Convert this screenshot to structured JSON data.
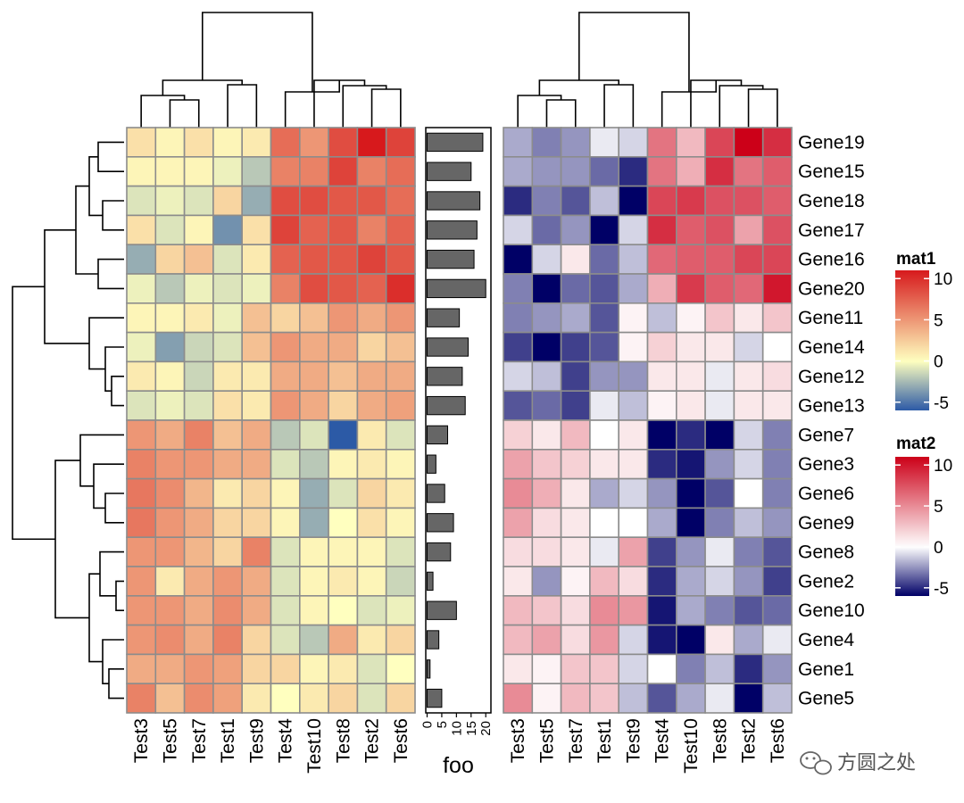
{
  "chart_data": {
    "type": "heatmap",
    "rows": [
      "Gene19",
      "Gene15",
      "Gene18",
      "Gene17",
      "Gene16",
      "Gene20",
      "Gene11",
      "Gene14",
      "Gene12",
      "Gene13",
      "Gene7",
      "Gene3",
      "Gene6",
      "Gene9",
      "Gene8",
      "Gene2",
      "Gene10",
      "Gene4",
      "Gene1",
      "Gene5"
    ],
    "columns": [
      "Test3",
      "Test5",
      "Test7",
      "Test1",
      "Test9",
      "Test4",
      "Test10",
      "Test8",
      "Test2",
      "Test6"
    ],
    "mat1": {
      "name": "mat1",
      "legend_ticks": [
        10,
        5,
        0,
        -5
      ],
      "range": [
        -6,
        11
      ],
      "colors": [
        "#2c5aa6",
        "#ffffbf",
        "#d7191c"
      ],
      "values": [
        [
          1.5,
          0.5,
          1.5,
          0.5,
          1,
          7,
          5,
          8.5,
          11,
          9
        ],
        [
          0.5,
          0.5,
          0.5,
          -0.5,
          -2,
          6,
          6,
          9,
          6,
          7
        ],
        [
          -1,
          -0.5,
          -1,
          2,
          -3,
          8.5,
          8.5,
          8,
          8,
          7
        ],
        [
          1.5,
          -1,
          0.5,
          -4,
          1.5,
          9,
          7.5,
          8,
          6,
          7.5
        ],
        [
          -3,
          2,
          3,
          -1,
          1,
          7.5,
          8,
          8,
          9,
          8
        ],
        [
          -0.5,
          -2,
          -0.5,
          -1,
          -0.5,
          6,
          8.5,
          8,
          7.5,
          10
        ],
        [
          0.5,
          0.5,
          1,
          -0.5,
          3,
          2,
          3,
          5,
          4,
          5
        ],
        [
          -0.5,
          -3.5,
          -1.5,
          -1,
          3,
          5,
          4,
          4,
          2,
          3
        ],
        [
          1,
          0.5,
          -1.5,
          1,
          1,
          4,
          4,
          3,
          4,
          4
        ],
        [
          -1,
          -0.5,
          -1,
          1.5,
          1,
          5,
          4,
          2,
          4,
          4.5
        ],
        [
          5,
          4,
          6,
          3,
          4,
          -2,
          -1,
          -6,
          1,
          -1
        ],
        [
          6,
          5,
          5,
          4,
          4,
          -1,
          -2,
          0.5,
          1,
          0.5
        ],
        [
          6.5,
          5.5,
          3.5,
          1,
          2,
          0.5,
          -3,
          -1,
          2,
          1
        ],
        [
          6.5,
          5,
          4,
          2,
          2,
          0.5,
          -3,
          0,
          1.5,
          0.5
        ],
        [
          5,
          5,
          3.5,
          2,
          6,
          -1,
          0.5,
          0.5,
          0.5,
          -1
        ],
        [
          5,
          1,
          4,
          5,
          4,
          -1,
          0.5,
          1,
          0.5,
          -1.5
        ],
        [
          5,
          5,
          4,
          5.5,
          4,
          -1,
          0.5,
          0,
          -1,
          -0.5
        ],
        [
          5,
          5.5,
          4,
          6,
          2,
          -1,
          -2,
          4,
          1,
          2
        ],
        [
          4,
          4,
          5,
          4.5,
          2,
          2,
          0.5,
          1,
          -1,
          0
        ],
        [
          6,
          3,
          5.5,
          4.5,
          1,
          0,
          1,
          2,
          -1,
          2
        ]
      ]
    },
    "mat2": {
      "name": "mat2",
      "legend_ticks": [
        10,
        5,
        0,
        -5
      ],
      "range": [
        -6,
        11
      ],
      "colors": [
        "#000066",
        "#ffffff",
        "#cc0018"
      ],
      "values": [
        [
          -2,
          -3,
          -2.5,
          -0.5,
          -1,
          6,
          3,
          8,
          11,
          9
        ],
        [
          -2,
          -2.5,
          -2.5,
          -3.5,
          -5,
          6,
          3.5,
          9,
          6,
          7
        ],
        [
          -5,
          -3,
          -4,
          -1.5,
          -6,
          8,
          8.5,
          7.5,
          7.5,
          7
        ],
        [
          -1,
          -3.5,
          -2.5,
          -6,
          -1,
          9,
          7,
          7.5,
          4,
          7.5
        ],
        [
          -6,
          -1,
          1,
          -3.5,
          -1.5,
          6.5,
          7,
          7,
          8,
          8
        ],
        [
          -3,
          -6,
          -3.5,
          -4,
          -2,
          3.5,
          8.5,
          7,
          6.5,
          10
        ],
        [
          -3,
          -2.5,
          -2,
          -4,
          0.5,
          -1.5,
          0.5,
          2.5,
          1,
          2.5
        ],
        [
          -4.5,
          -6.5,
          -4.5,
          -4,
          0.5,
          2,
          1,
          1,
          -1,
          0
        ],
        [
          -1,
          -1.5,
          -4.5,
          -2.5,
          -2.5,
          1,
          1,
          -0.5,
          1,
          1.5
        ],
        [
          -4,
          -3.5,
          -4.5,
          -0.5,
          -1.5,
          0.5,
          1,
          -0.5,
          1,
          1
        ],
        [
          2,
          1,
          3,
          0,
          1,
          -6,
          -5,
          -8,
          -1,
          -3
        ],
        [
          4,
          2.5,
          2,
          1,
          1,
          -5,
          -5.5,
          -2.5,
          -1,
          -3
        ],
        [
          5,
          3.5,
          1,
          -2,
          -1,
          -2.5,
          -6.5,
          -4,
          0,
          -3
        ],
        [
          4,
          1.5,
          1,
          0,
          0,
          -2,
          -6.5,
          -3,
          -1.5,
          -2.5
        ],
        [
          1.5,
          1.5,
          1,
          -0.5,
          4,
          -4.5,
          -2.5,
          -0.5,
          -3,
          -4
        ],
        [
          1,
          -2.5,
          0.5,
          3,
          1.5,
          -5,
          -2,
          -1,
          -2.5,
          -4.5
        ],
        [
          3,
          2.5,
          1.5,
          5,
          4.5,
          -5.5,
          -2,
          -3,
          -4,
          -3.5
        ],
        [
          3,
          4,
          1.5,
          4.5,
          -1,
          -5.5,
          -6.5,
          1,
          -2,
          -0.5
        ],
        [
          1,
          0.5,
          2.5,
          2.5,
          -1,
          0,
          -3,
          -1.5,
          -5,
          -2.5
        ],
        [
          5,
          0.5,
          3,
          2.5,
          -1.5,
          -4,
          -2,
          -0.5,
          -6.5,
          -1.5
        ]
      ]
    },
    "foo": {
      "label": "foo",
      "axis_ticks": [
        0,
        5,
        10,
        15,
        20
      ],
      "range": [
        0,
        21
      ],
      "values": [
        19,
        15,
        18,
        17,
        16,
        20,
        11,
        14,
        12,
        13,
        7,
        3,
        6,
        9,
        8,
        2,
        10,
        4,
        1,
        5
      ]
    }
  },
  "watermark": {
    "text": "方圆之处",
    "icon": "wechat-icon"
  }
}
